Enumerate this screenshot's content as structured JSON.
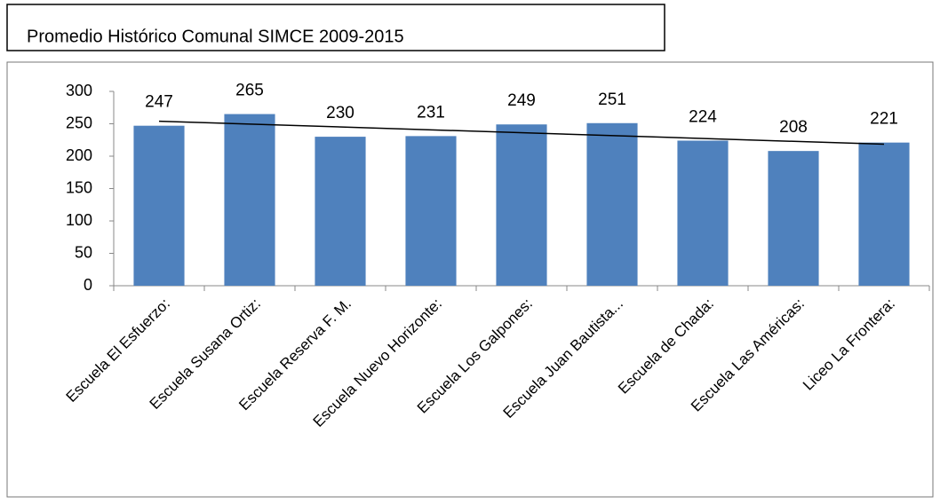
{
  "chart_data": {
    "type": "bar",
    "title": "Promedio Histórico  Comunal SIMCE 2009-2015",
    "categories": [
      "Escuela El Esfuerzo:",
      "Escuela Susana Ortiz:",
      "Escuela Reserva F. M.",
      "Escuela Nuevo Horizonte:",
      "Escuela Los Galpones:",
      "Escuela Juan Bautista...",
      "Escuela de Chada:",
      "Escuela Las Américas:",
      "Liceo La Frontera:"
    ],
    "values": [
      247,
      265,
      230,
      231,
      249,
      251,
      224,
      208,
      221
    ],
    "color": "#4f81bd",
    "ylim": [
      0,
      300
    ],
    "yticks": [
      0,
      50,
      100,
      150,
      200,
      250,
      300
    ],
    "grid": false,
    "trendline": true
  }
}
